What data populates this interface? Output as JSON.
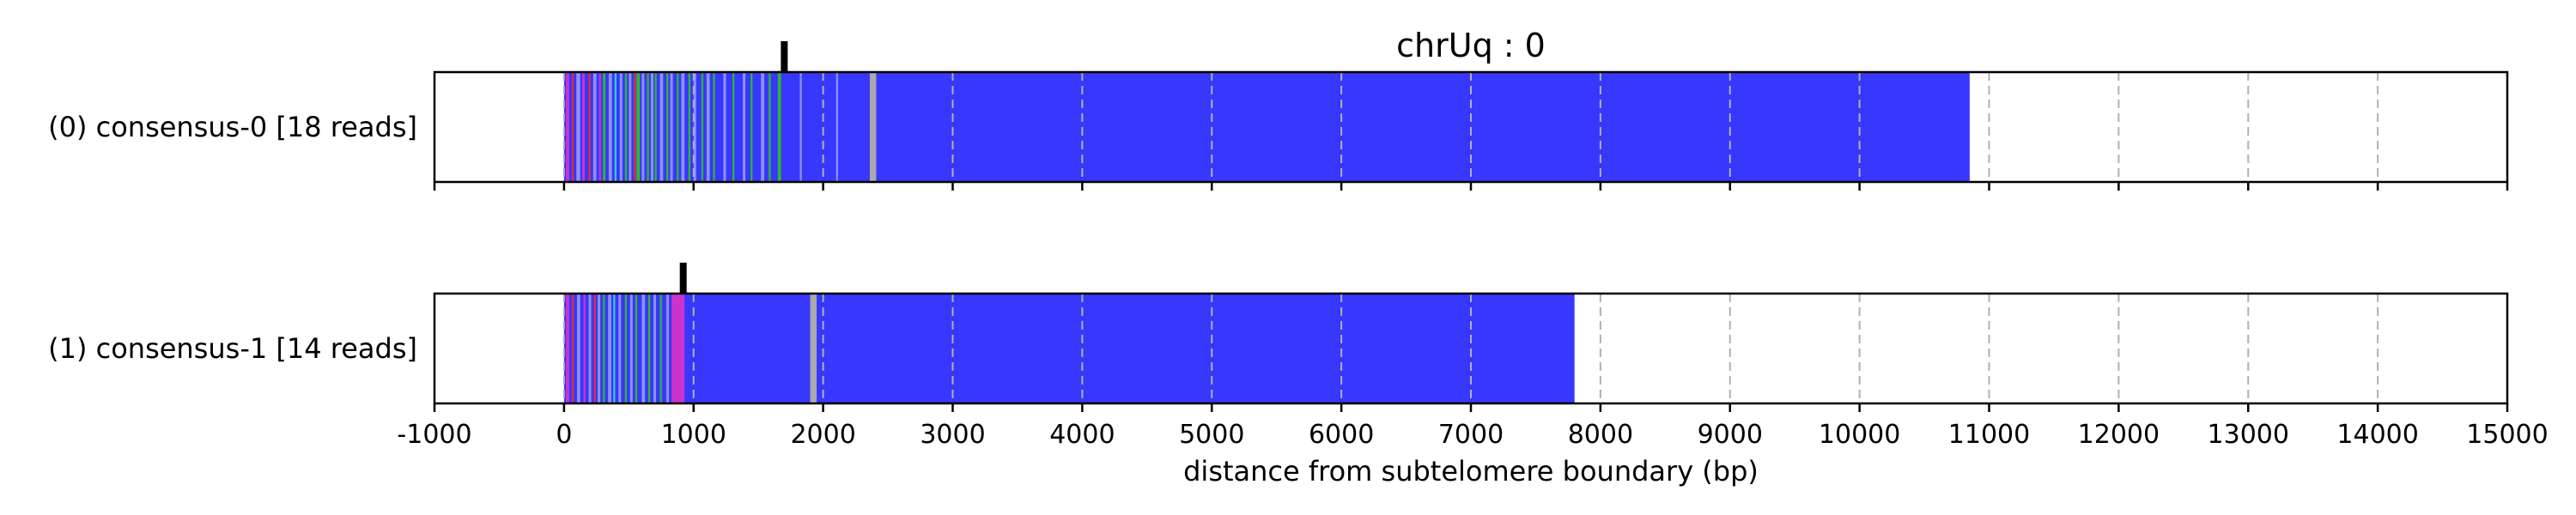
{
  "chart_data": {
    "type": "bar",
    "title": "chrUq : 0",
    "xlabel": "distance from subtelomere boundary (bp)",
    "ylabel": "",
    "xlim": [
      -1000,
      15000
    ],
    "xticks": [
      -1000,
      0,
      1000,
      2000,
      3000,
      4000,
      5000,
      6000,
      7000,
      8000,
      9000,
      10000,
      11000,
      12000,
      13000,
      14000,
      15000
    ],
    "grid": "vertical-dashed",
    "legend": "none",
    "colors": {
      "blue": "#3737fd",
      "lightblue": "#8f8ffa",
      "green": "#2eb82e",
      "magenta": "#cc33cc",
      "red": "#e03030",
      "cyan": "#33cccc",
      "gray": "#aaaaaa"
    },
    "rows": [
      {
        "label": "(0) consensus-0 [18 reads]",
        "bar_start": 0,
        "bar_end": 10850,
        "bar_color": "#3737fd",
        "marker": 1700,
        "stripes": [
          {
            "x": 15,
            "w": 25,
            "color": "#cc33cc"
          },
          {
            "x": 60,
            "w": 15,
            "color": "#e03030"
          },
          {
            "x": 95,
            "w": 30,
            "color": "#8f8ffa"
          },
          {
            "x": 140,
            "w": 20,
            "color": "#cc33cc"
          },
          {
            "x": 190,
            "w": 15,
            "color": "#e03030"
          },
          {
            "x": 225,
            "w": 25,
            "color": "#8f8ffa"
          },
          {
            "x": 270,
            "w": 15,
            "color": "#cc33cc"
          },
          {
            "x": 300,
            "w": 20,
            "color": "#2eb82e"
          },
          {
            "x": 345,
            "w": 25,
            "color": "#8f8ffa"
          },
          {
            "x": 390,
            "w": 15,
            "color": "#33cccc"
          },
          {
            "x": 430,
            "w": 20,
            "color": "#8f8ffa"
          },
          {
            "x": 470,
            "w": 15,
            "color": "#2eb82e"
          },
          {
            "x": 500,
            "w": 20,
            "color": "#8f8ffa"
          },
          {
            "x": 540,
            "w": 15,
            "color": "#e03030"
          },
          {
            "x": 560,
            "w": 25,
            "color": "#2eb82e"
          },
          {
            "x": 600,
            "w": 20,
            "color": "#8f8ffa"
          },
          {
            "x": 640,
            "w": 15,
            "color": "#2eb82e"
          },
          {
            "x": 670,
            "w": 20,
            "color": "#8f8ffa"
          },
          {
            "x": 700,
            "w": 15,
            "color": "#2eb82e"
          },
          {
            "x": 740,
            "w": 25,
            "color": "#8f8ffa"
          },
          {
            "x": 790,
            "w": 15,
            "color": "#2eb82e"
          },
          {
            "x": 820,
            "w": 20,
            "color": "#8f8ffa"
          },
          {
            "x": 870,
            "w": 15,
            "color": "#2eb82e"
          },
          {
            "x": 905,
            "w": 25,
            "color": "#8f8ffa"
          },
          {
            "x": 960,
            "w": 15,
            "color": "#2eb82e"
          },
          {
            "x": 1000,
            "w": 20,
            "color": "#8f8ffa"
          },
          {
            "x": 1060,
            "w": 15,
            "color": "#2eb82e"
          },
          {
            "x": 1100,
            "w": 25,
            "color": "#8f8ffa"
          },
          {
            "x": 1150,
            "w": 15,
            "color": "#2eb82e"
          },
          {
            "x": 1230,
            "w": 20,
            "color": "#8f8ffa"
          },
          {
            "x": 1300,
            "w": 15,
            "color": "#2eb82e"
          },
          {
            "x": 1380,
            "w": 20,
            "color": "#8f8ffa"
          },
          {
            "x": 1440,
            "w": 15,
            "color": "#2eb82e"
          },
          {
            "x": 1520,
            "w": 25,
            "color": "#8f8ffa"
          },
          {
            "x": 1580,
            "w": 15,
            "color": "#2eb82e"
          },
          {
            "x": 1650,
            "w": 25,
            "color": "#2eb82e"
          },
          {
            "x": 1820,
            "w": 15,
            "color": "#8f8ffa"
          },
          {
            "x": 2100,
            "w": 15,
            "color": "#8f8ffa"
          },
          {
            "x": 2360,
            "w": 50,
            "color": "#aaaaaa"
          }
        ]
      },
      {
        "label": "(1) consensus-1 [14 reads]",
        "bar_start": 0,
        "bar_end": 7800,
        "bar_color": "#3737fd",
        "marker": 920,
        "stripes": [
          {
            "x": 15,
            "w": 25,
            "color": "#cc33cc"
          },
          {
            "x": 60,
            "w": 15,
            "color": "#e03030"
          },
          {
            "x": 100,
            "w": 25,
            "color": "#8f8ffa"
          },
          {
            "x": 150,
            "w": 15,
            "color": "#cc33cc"
          },
          {
            "x": 190,
            "w": 20,
            "color": "#8f8ffa"
          },
          {
            "x": 230,
            "w": 15,
            "color": "#e03030"
          },
          {
            "x": 260,
            "w": 20,
            "color": "#8f8ffa"
          },
          {
            "x": 300,
            "w": 15,
            "color": "#2eb82e"
          },
          {
            "x": 340,
            "w": 25,
            "color": "#8f8ffa"
          },
          {
            "x": 380,
            "w": 15,
            "color": "#33cccc"
          },
          {
            "x": 420,
            "w": 20,
            "color": "#8f8ffa"
          },
          {
            "x": 470,
            "w": 15,
            "color": "#2eb82e"
          },
          {
            "x": 510,
            "w": 20,
            "color": "#8f8ffa"
          },
          {
            "x": 550,
            "w": 15,
            "color": "#2eb82e"
          },
          {
            "x": 600,
            "w": 25,
            "color": "#8f8ffa"
          },
          {
            "x": 650,
            "w": 15,
            "color": "#2eb82e"
          },
          {
            "x": 690,
            "w": 20,
            "color": "#8f8ffa"
          },
          {
            "x": 740,
            "w": 15,
            "color": "#2eb82e"
          },
          {
            "x": 790,
            "w": 20,
            "color": "#8f8ffa"
          },
          {
            "x": 830,
            "w": 100,
            "color": "#cc33cc"
          },
          {
            "x": 1900,
            "w": 50,
            "color": "#aaaaaa"
          }
        ]
      }
    ]
  }
}
